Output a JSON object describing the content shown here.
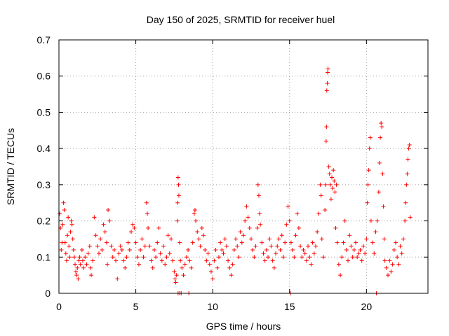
{
  "chart_data": {
    "type": "scatter",
    "title": "Day 150 of 2025, SRMTID for receiver huel",
    "xlabel": "GPS time / hours",
    "ylabel": "SRMTID / TECUs",
    "xlim": [
      0,
      24
    ],
    "ylim": [
      0,
      0.7
    ],
    "x_ticks": [
      0,
      5,
      10,
      15,
      20
    ],
    "x_tick_labels": [
      "0",
      "5",
      "10",
      "15",
      "20"
    ],
    "y_ticks": [
      0,
      0.1,
      0.2,
      0.3,
      0.4,
      0.5,
      0.6,
      0.7
    ],
    "y_tick_labels": [
      "0",
      "0.1",
      "0.2",
      "0.3",
      "0.4",
      "0.5",
      "0.6",
      "0.7"
    ],
    "grid": true,
    "marker": "plus",
    "series_color": "#ff0000",
    "series": [
      {
        "name": "SRMTID",
        "points": [
          [
            0.05,
            0.22
          ],
          [
            0.1,
            0.18
          ],
          [
            0.15,
            0.12
          ],
          [
            0.2,
            0.14
          ],
          [
            0.25,
            0.19
          ],
          [
            0.3,
            0.25
          ],
          [
            0.35,
            0.23
          ],
          [
            0.4,
            0.14
          ],
          [
            0.45,
            0.11
          ],
          [
            0.5,
            0.09
          ],
          [
            0.55,
            0.16
          ],
          [
            0.6,
            0.21
          ],
          [
            0.65,
            0.13
          ],
          [
            0.7,
            0.1
          ],
          [
            0.75,
            0.17
          ],
          [
            0.8,
            0.2
          ],
          [
            0.85,
            0.19
          ],
          [
            0.9,
            0.15
          ],
          [
            0.95,
            0.12
          ],
          [
            1.0,
            0.1
          ],
          [
            1.05,
            0.08
          ],
          [
            1.1,
            0.06
          ],
          [
            1.15,
            0.05
          ],
          [
            1.2,
            0.07
          ],
          [
            1.25,
            0.04
          ],
          [
            1.3,
            0.09
          ],
          [
            1.35,
            0.1
          ],
          [
            1.4,
            0.08
          ],
          [
            1.5,
            0.12
          ],
          [
            1.55,
            0.09
          ],
          [
            1.6,
            0.07
          ],
          [
            1.7,
            0.1
          ],
          [
            1.8,
            0.08
          ],
          [
            1.9,
            0.11
          ],
          [
            2.0,
            0.13
          ],
          [
            2.05,
            0.07
          ],
          [
            2.1,
            0.05
          ],
          [
            2.2,
            0.09
          ],
          [
            2.3,
            0.21
          ],
          [
            2.4,
            0.16
          ],
          [
            2.5,
            0.13
          ],
          [
            2.6,
            0.11
          ],
          [
            2.7,
            0.15
          ],
          [
            2.8,
            0.12
          ],
          [
            2.9,
            0.19
          ],
          [
            3.0,
            0.17
          ],
          [
            3.1,
            0.14
          ],
          [
            3.15,
            0.08
          ],
          [
            3.2,
            0.23
          ],
          [
            3.3,
            0.2
          ],
          [
            3.4,
            0.13
          ],
          [
            3.5,
            0.1
          ],
          [
            3.6,
            0.12
          ],
          [
            3.7,
            0.09
          ],
          [
            3.8,
            0.04
          ],
          [
            3.9,
            0.11
          ],
          [
            4.0,
            0.13
          ],
          [
            4.1,
            0.12
          ],
          [
            4.2,
            0.09
          ],
          [
            4.3,
            0.07
          ],
          [
            4.4,
            0.1
          ],
          [
            4.5,
            0.14
          ],
          [
            4.6,
            0.12
          ],
          [
            4.7,
            0.17
          ],
          [
            4.8,
            0.19
          ],
          [
            4.9,
            0.18
          ],
          [
            5.0,
            0.14
          ],
          [
            5.1,
            0.1
          ],
          [
            5.2,
            0.08
          ],
          [
            5.3,
            0.12
          ],
          [
            5.4,
            0.15
          ],
          [
            5.5,
            0.1
          ],
          [
            5.6,
            0.13
          ],
          [
            5.7,
            0.25
          ],
          [
            5.75,
            0.22
          ],
          [
            5.8,
            0.18
          ],
          [
            5.9,
            0.13
          ],
          [
            6.0,
            0.09
          ],
          [
            6.1,
            0.07
          ],
          [
            6.2,
            0.12
          ],
          [
            6.3,
            0.1
          ],
          [
            6.4,
            0.14
          ],
          [
            6.5,
            0.18
          ],
          [
            6.6,
            0.11
          ],
          [
            6.7,
            0.09
          ],
          [
            6.8,
            0.13
          ],
          [
            6.9,
            0.08
          ],
          [
            7.0,
            0.1
          ],
          [
            7.1,
            0.16
          ],
          [
            7.2,
            0.11
          ],
          [
            7.3,
            0.15
          ],
          [
            7.4,
            0.09
          ],
          [
            7.5,
            0.06
          ],
          [
            7.55,
            0.04
          ],
          [
            7.6,
            0.03
          ],
          [
            7.65,
            0.05
          ],
          [
            7.7,
            0.2
          ],
          [
            7.72,
            0.25
          ],
          [
            7.75,
            0.32
          ],
          [
            7.78,
            0.3
          ],
          [
            7.8,
            0.27
          ],
          [
            7.85,
            0.14
          ],
          [
            7.9,
            0.09
          ],
          [
            8.0,
            0.07
          ],
          [
            8.1,
            0.05
          ],
          [
            8.2,
            0.08
          ],
          [
            8.3,
            0.1
          ],
          [
            8.4,
            0.12
          ],
          [
            8.5,
            0.09
          ],
          [
            8.6,
            0.07
          ],
          [
            8.7,
            0.14
          ],
          [
            8.8,
            0.22
          ],
          [
            8.85,
            0.23
          ],
          [
            8.9,
            0.2
          ],
          [
            9.0,
            0.17
          ],
          [
            9.1,
            0.15
          ],
          [
            9.2,
            0.13
          ],
          [
            9.3,
            0.18
          ],
          [
            9.4,
            0.16
          ],
          [
            9.5,
            0.12
          ],
          [
            9.6,
            0.09
          ],
          [
            9.7,
            0.11
          ],
          [
            9.8,
            0.08
          ],
          [
            9.9,
            0.06
          ],
          [
            10.0,
            0.04
          ],
          [
            10.1,
            0.09
          ],
          [
            10.2,
            0.12
          ],
          [
            10.3,
            0.07
          ],
          [
            10.4,
            0.1
          ],
          [
            10.5,
            0.14
          ],
          [
            10.6,
            0.12
          ],
          [
            10.7,
            0.11
          ],
          [
            10.8,
            0.15
          ],
          [
            10.9,
            0.13
          ],
          [
            11.0,
            0.09
          ],
          [
            11.1,
            0.07
          ],
          [
            11.2,
            0.05
          ],
          [
            11.3,
            0.08
          ],
          [
            11.4,
            0.12
          ],
          [
            11.5,
            0.15
          ],
          [
            11.6,
            0.13
          ],
          [
            11.7,
            0.1
          ],
          [
            11.8,
            0.17
          ],
          [
            11.9,
            0.14
          ],
          [
            12.0,
            0.16
          ],
          [
            12.1,
            0.2
          ],
          [
            12.2,
            0.24
          ],
          [
            12.3,
            0.21
          ],
          [
            12.4,
            0.18
          ],
          [
            12.5,
            0.15
          ],
          [
            12.6,
            0.12
          ],
          [
            12.7,
            0.1
          ],
          [
            12.8,
            0.13
          ],
          [
            12.9,
            0.18
          ],
          [
            12.95,
            0.3
          ],
          [
            13.0,
            0.27
          ],
          [
            13.05,
            0.22
          ],
          [
            13.1,
            0.19
          ],
          [
            13.2,
            0.14
          ],
          [
            13.3,
            0.11
          ],
          [
            13.4,
            0.09
          ],
          [
            13.5,
            0.12
          ],
          [
            13.6,
            0.1
          ],
          [
            13.7,
            0.15
          ],
          [
            13.8,
            0.13
          ],
          [
            13.9,
            0.09
          ],
          [
            14.0,
            0.07
          ],
          [
            14.1,
            0.11
          ],
          [
            14.2,
            0.13
          ],
          [
            14.3,
            0.15
          ],
          [
            14.4,
            0.12
          ],
          [
            14.5,
            0.16
          ],
          [
            14.6,
            0.1
          ],
          [
            14.7,
            0.14
          ],
          [
            14.8,
            0.19
          ],
          [
            14.9,
            0.24
          ],
          [
            15.0,
            0.2
          ],
          [
            15.1,
            0.14
          ],
          [
            15.2,
            0.12
          ],
          [
            15.3,
            0.1
          ],
          [
            15.4,
            0.16
          ],
          [
            15.5,
            0.22
          ],
          [
            15.6,
            0.18
          ],
          [
            15.7,
            0.13
          ],
          [
            15.8,
            0.1
          ],
          [
            15.9,
            0.12
          ],
          [
            16.0,
            0.11
          ],
          [
            16.1,
            0.09
          ],
          [
            16.2,
            0.13
          ],
          [
            16.3,
            0.1
          ],
          [
            16.4,
            0.08
          ],
          [
            16.5,
            0.14
          ],
          [
            16.6,
            0.11
          ],
          [
            16.7,
            0.13
          ],
          [
            16.8,
            0.17
          ],
          [
            16.9,
            0.22
          ],
          [
            17.0,
            0.3
          ],
          [
            17.05,
            0.27
          ],
          [
            17.1,
            0.15
          ],
          [
            17.2,
            0.1
          ],
          [
            17.3,
            0.23
          ],
          [
            17.35,
            0.3
          ],
          [
            17.38,
            0.42
          ],
          [
            17.4,
            0.46
          ],
          [
            17.42,
            0.56
          ],
          [
            17.45,
            0.58
          ],
          [
            17.48,
            0.61
          ],
          [
            17.5,
            0.62
          ],
          [
            17.55,
            0.35
          ],
          [
            17.6,
            0.33
          ],
          [
            17.65,
            0.3
          ],
          [
            17.7,
            0.26
          ],
          [
            17.75,
            0.32
          ],
          [
            17.8,
            0.29
          ],
          [
            17.85,
            0.34
          ],
          [
            17.9,
            0.31
          ],
          [
            17.95,
            0.28
          ],
          [
            18.0,
            0.18
          ],
          [
            18.05,
            0.3
          ],
          [
            18.1,
            0.14
          ],
          [
            18.2,
            0.08
          ],
          [
            18.3,
            0.05
          ],
          [
            18.4,
            0.1
          ],
          [
            18.5,
            0.14
          ],
          [
            18.6,
            0.2
          ],
          [
            18.7,
            0.12
          ],
          [
            18.8,
            0.09
          ],
          [
            18.9,
            0.16
          ],
          [
            19.0,
            0.13
          ],
          [
            19.1,
            0.1
          ],
          [
            19.2,
            0.12
          ],
          [
            19.3,
            0.14
          ],
          [
            19.4,
            0.1
          ],
          [
            19.5,
            0.11
          ],
          [
            19.6,
            0.12
          ],
          [
            19.7,
            0.09
          ],
          [
            19.8,
            0.13
          ],
          [
            19.9,
            0.11
          ],
          [
            20.0,
            0.15
          ],
          [
            20.05,
            0.25
          ],
          [
            20.1,
            0.3
          ],
          [
            20.15,
            0.34
          ],
          [
            20.2,
            0.4
          ],
          [
            20.25,
            0.43
          ],
          [
            20.3,
            0.2
          ],
          [
            20.4,
            0.14
          ],
          [
            20.5,
            0.11
          ],
          [
            20.6,
            0.17
          ],
          [
            20.7,
            0.2
          ],
          [
            20.8,
            0.28
          ],
          [
            20.85,
            0.36
          ],
          [
            20.9,
            0.43
          ],
          [
            20.95,
            0.47
          ],
          [
            21.0,
            0.46
          ],
          [
            21.05,
            0.33
          ],
          [
            21.1,
            0.24
          ],
          [
            21.15,
            0.15
          ],
          [
            21.2,
            0.09
          ],
          [
            21.3,
            0.07
          ],
          [
            21.4,
            0.05
          ],
          [
            21.5,
            0.09
          ],
          [
            21.6,
            0.06
          ],
          [
            21.7,
            0.08
          ],
          [
            21.8,
            0.12
          ],
          [
            21.9,
            0.14
          ],
          [
            22.0,
            0.1
          ],
          [
            22.1,
            0.08
          ],
          [
            22.2,
            0.13
          ],
          [
            22.3,
            0.11
          ],
          [
            22.4,
            0.15
          ],
          [
            22.5,
            0.2
          ],
          [
            22.55,
            0.25
          ],
          [
            22.6,
            0.3
          ],
          [
            22.65,
            0.33
          ],
          [
            22.7,
            0.37
          ],
          [
            22.75,
            0.4
          ],
          [
            22.8,
            0.41
          ],
          [
            22.85,
            0.21
          ],
          [
            7.75,
            0.0
          ],
          [
            7.85,
            0.0
          ],
          [
            7.95,
            0.0
          ],
          [
            8.45,
            0.0
          ],
          [
            15.05,
            0.0
          ],
          [
            20.65,
            0.0
          ]
        ]
      }
    ]
  }
}
